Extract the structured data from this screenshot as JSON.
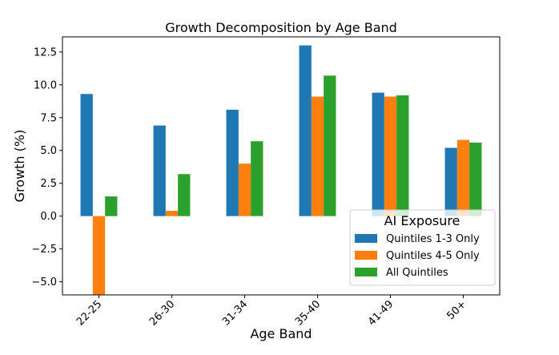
{
  "chart_data": {
    "type": "bar",
    "title": "Growth Decomposition by Age Band",
    "xlabel": "Age Band",
    "ylabel": "Growth (%)",
    "categories": [
      "22-25",
      "26-30",
      "31-34",
      "35-40",
      "41-49",
      "50+"
    ],
    "series": [
      {
        "name": "Quintiles 1-3 Only",
        "color": "#1f77b4",
        "values": [
          9.3,
          6.9,
          8.1,
          13.0,
          9.4,
          5.2
        ]
      },
      {
        "name": "Quintiles 4-5 Only",
        "color": "#ff7f0e",
        "values": [
          -6.0,
          0.4,
          4.0,
          9.1,
          9.1,
          5.8
        ]
      },
      {
        "name": "All Quintiles",
        "color": "#2ca02c",
        "values": [
          1.5,
          3.2,
          5.7,
          10.7,
          9.2,
          5.6
        ]
      }
    ],
    "ylim": [
      -6.0,
      13.65
    ],
    "yticks": [
      -5.0,
      -2.5,
      0.0,
      2.5,
      5.0,
      7.5,
      10.0,
      12.5
    ],
    "ytick_labels": [
      "−5.0",
      "−2.5",
      "0.0",
      "2.5",
      "5.0",
      "7.5",
      "10.0",
      "12.5"
    ],
    "legend": {
      "title": "AI Exposure",
      "position": "lower-right"
    },
    "grid": false
  }
}
